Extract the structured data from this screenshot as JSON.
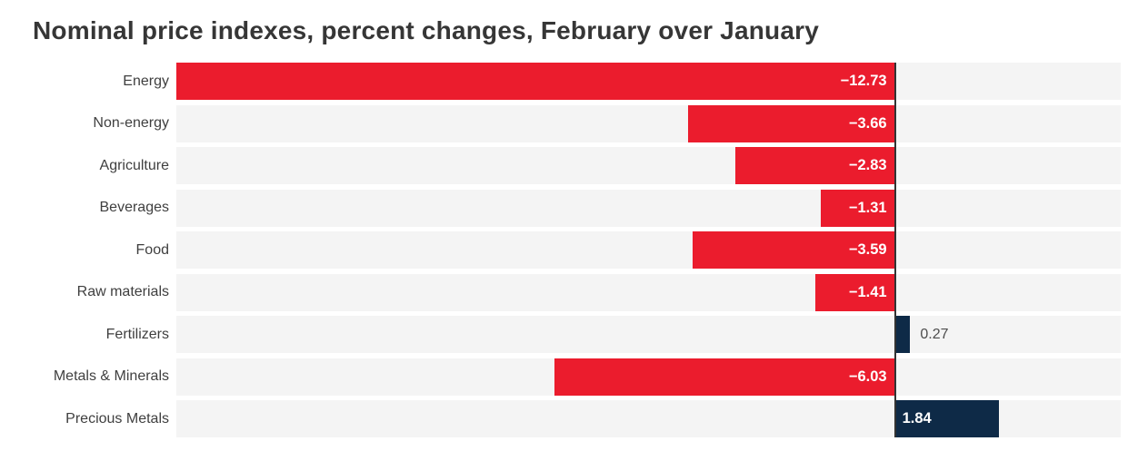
{
  "title": "Nominal price indexes, percent changes, February over January",
  "colors": {
    "negative_bar": "#eb1c2d",
    "positive_bar": "#0e2a47",
    "row_stripe": "#f4f4f4",
    "zero_line": "#333333",
    "title_text": "#363636",
    "category_text": "#3f3f3f",
    "inside_label_text": "#ffffff",
    "outside_label_text": "#4d4d4d"
  },
  "chart_data": {
    "type": "bar",
    "orientation": "horizontal",
    "title": "Nominal price indexes, percent changes, February over January",
    "categories": [
      "Energy",
      "Non-energy",
      "Agriculture",
      "Beverages",
      "Food",
      "Raw materials",
      "Fertilizers",
      "Metals & Minerals",
      "Precious Metals"
    ],
    "values": [
      -12.73,
      -3.66,
      -2.83,
      -1.31,
      -3.59,
      -1.41,
      0.27,
      -6.03,
      1.84
    ],
    "value_labels": [
      "−12.73",
      "−3.66",
      "−2.83",
      "−1.31",
      "−3.59",
      "−1.41",
      "0.27",
      "−6.03",
      "1.84"
    ],
    "xlabel": "",
    "ylabel": "",
    "xlim": [
      -12.73,
      4.0
    ],
    "grid": false,
    "legend": false,
    "zero_line": true,
    "row_striping": true
  }
}
